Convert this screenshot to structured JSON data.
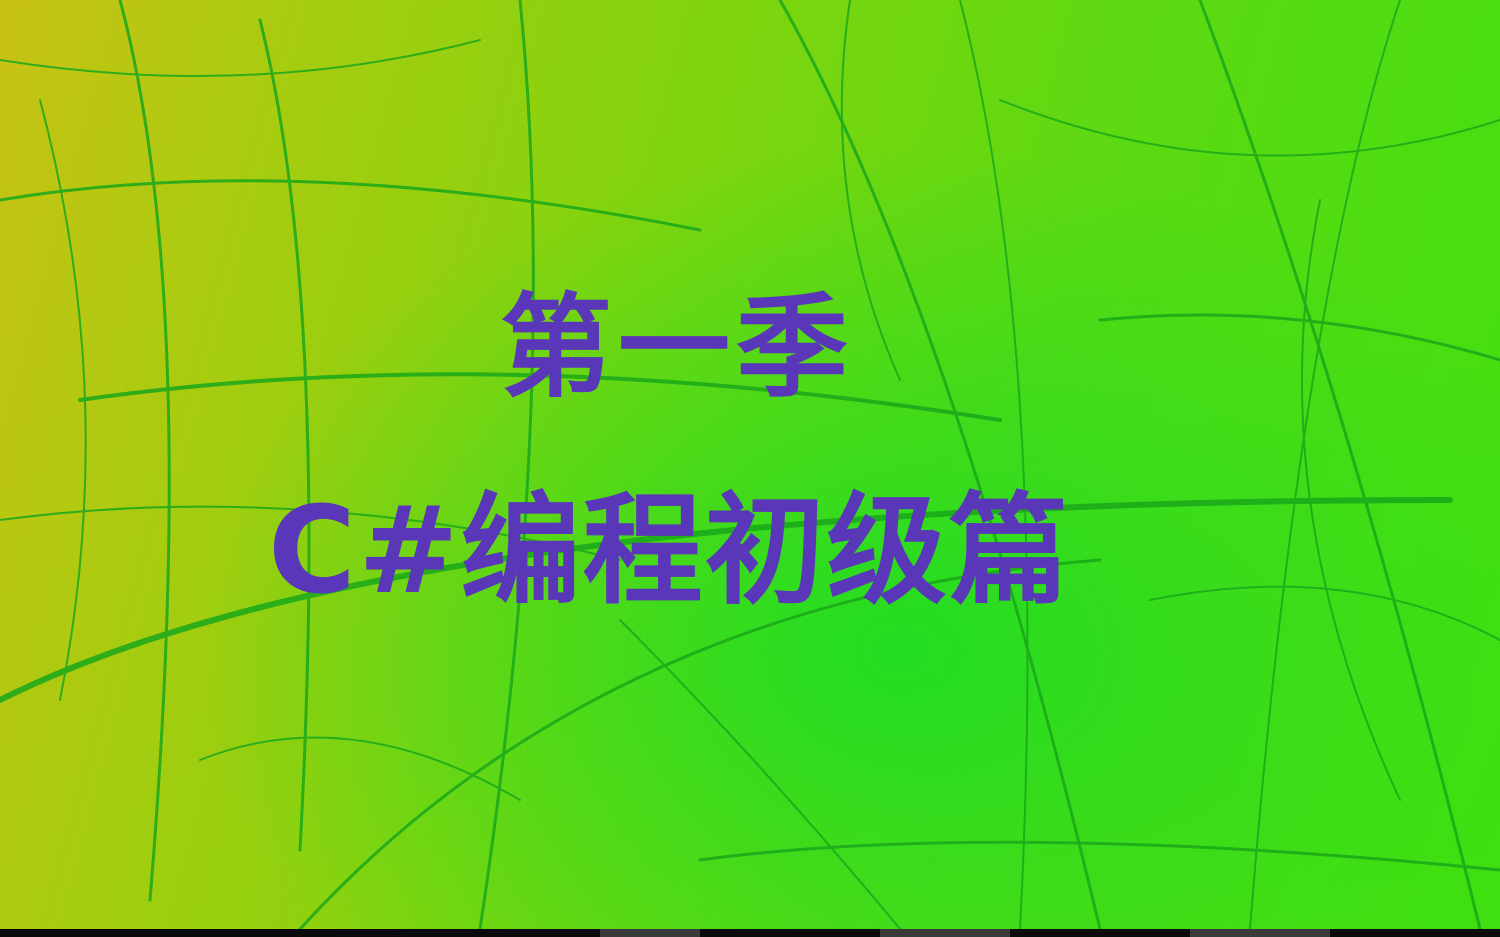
{
  "slide": {
    "season_label": "第一季",
    "course_title": "C#编程初级篇"
  },
  "colors": {
    "title_text": "#5a36b8",
    "background_left": "#c8c214",
    "background_right": "#3fe010",
    "strokes": "#1aa81a"
  }
}
